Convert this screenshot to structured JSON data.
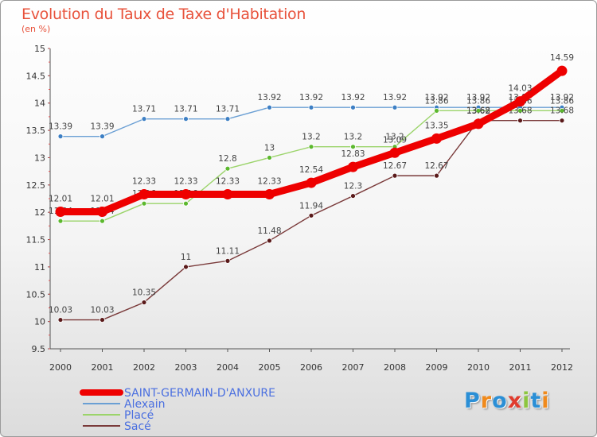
{
  "title": "Evolution du Taux de Taxe d'Habitation",
  "unit": "(en %)",
  "logo": {
    "letters": [
      "P",
      "r",
      "o",
      "x",
      "i",
      "t",
      "i"
    ],
    "colors": [
      "#2b8fd6",
      "#f08a1c",
      "#2b8fd6",
      "#e03c2e",
      "#8cc63f",
      "#2b8fd6",
      "#f08a1c"
    ]
  },
  "chart_data": {
    "type": "line",
    "categories": [
      "2000",
      "2001",
      "2002",
      "2003",
      "2004",
      "2005",
      "2006",
      "2007",
      "2008",
      "2009",
      "2010",
      "2011",
      "2012"
    ],
    "ylim": [
      9.5,
      15
    ],
    "yticks": [
      "9.5",
      "10",
      "10.5",
      "11",
      "11.5",
      "12",
      "12.5",
      "13",
      "13.5",
      "14",
      "14.5",
      "15"
    ],
    "grid": false,
    "legend": "bottom-left",
    "series": [
      {
        "name": "Alexain",
        "color": "#6a9fd4",
        "marker": "#3d7fc4",
        "values": [
          13.39,
          13.39,
          13.71,
          13.71,
          13.71,
          13.92,
          13.92,
          13.92,
          13.92,
          13.92,
          13.92,
          13.92,
          13.92
        ],
        "labels": [
          "13.39",
          "13.39",
          "13.71",
          "13.71",
          "13.71",
          "13.92",
          "13.92",
          "13.92",
          "13.92",
          "13.92",
          "13.92",
          "13.92",
          "13.92"
        ]
      },
      {
        "name": "Placé",
        "color": "#9bd46a",
        "marker": "#5cb82e",
        "values": [
          11.84,
          11.84,
          12.16,
          12.16,
          12.8,
          13,
          13.2,
          13.2,
          13.2,
          13.86,
          13.86,
          13.86,
          13.86
        ],
        "labels": [
          "11.84",
          "11.84",
          "12.16",
          "12.16",
          "12.8",
          "13",
          "13.2",
          "13.2",
          "13.2",
          "13.86",
          "13.86",
          "13.86",
          "13.86"
        ]
      },
      {
        "name": "Sacé",
        "color": "#7a3a3a",
        "marker": "#5a1a1a",
        "values": [
          10.03,
          10.03,
          10.35,
          11,
          11.11,
          11.48,
          11.94,
          12.3,
          12.67,
          12.67,
          13.68,
          13.68,
          13.68
        ],
        "labels": [
          "10.03",
          "10.03",
          "10.35",
          "11",
          "11.11",
          "11.48",
          "11.94",
          "12.3",
          "12.67",
          "12.67",
          "13.68",
          "13.68",
          "13.68"
        ]
      },
      {
        "name": "SAINT-GERMAIN-D'ANXURE",
        "color": "#ee0000",
        "marker": "#ee0000",
        "bold": true,
        "values": [
          12.01,
          12.01,
          12.33,
          12.33,
          12.33,
          12.33,
          12.54,
          12.83,
          13.09,
          13.35,
          13.62,
          14.03,
          14.59
        ],
        "labels": [
          "12.01",
          "12.01",
          "12.33",
          "12.33",
          "12.33",
          "12.33",
          "12.54",
          "12.83",
          "13.09",
          "13.35",
          "13.62",
          "14.03",
          "14.59"
        ]
      }
    ],
    "legend_order": [
      "SAINT-GERMAIN-D'ANXURE",
      "Alexain",
      "Placé",
      "Sacé"
    ],
    "legend_text_color": "#4a6fe0"
  }
}
